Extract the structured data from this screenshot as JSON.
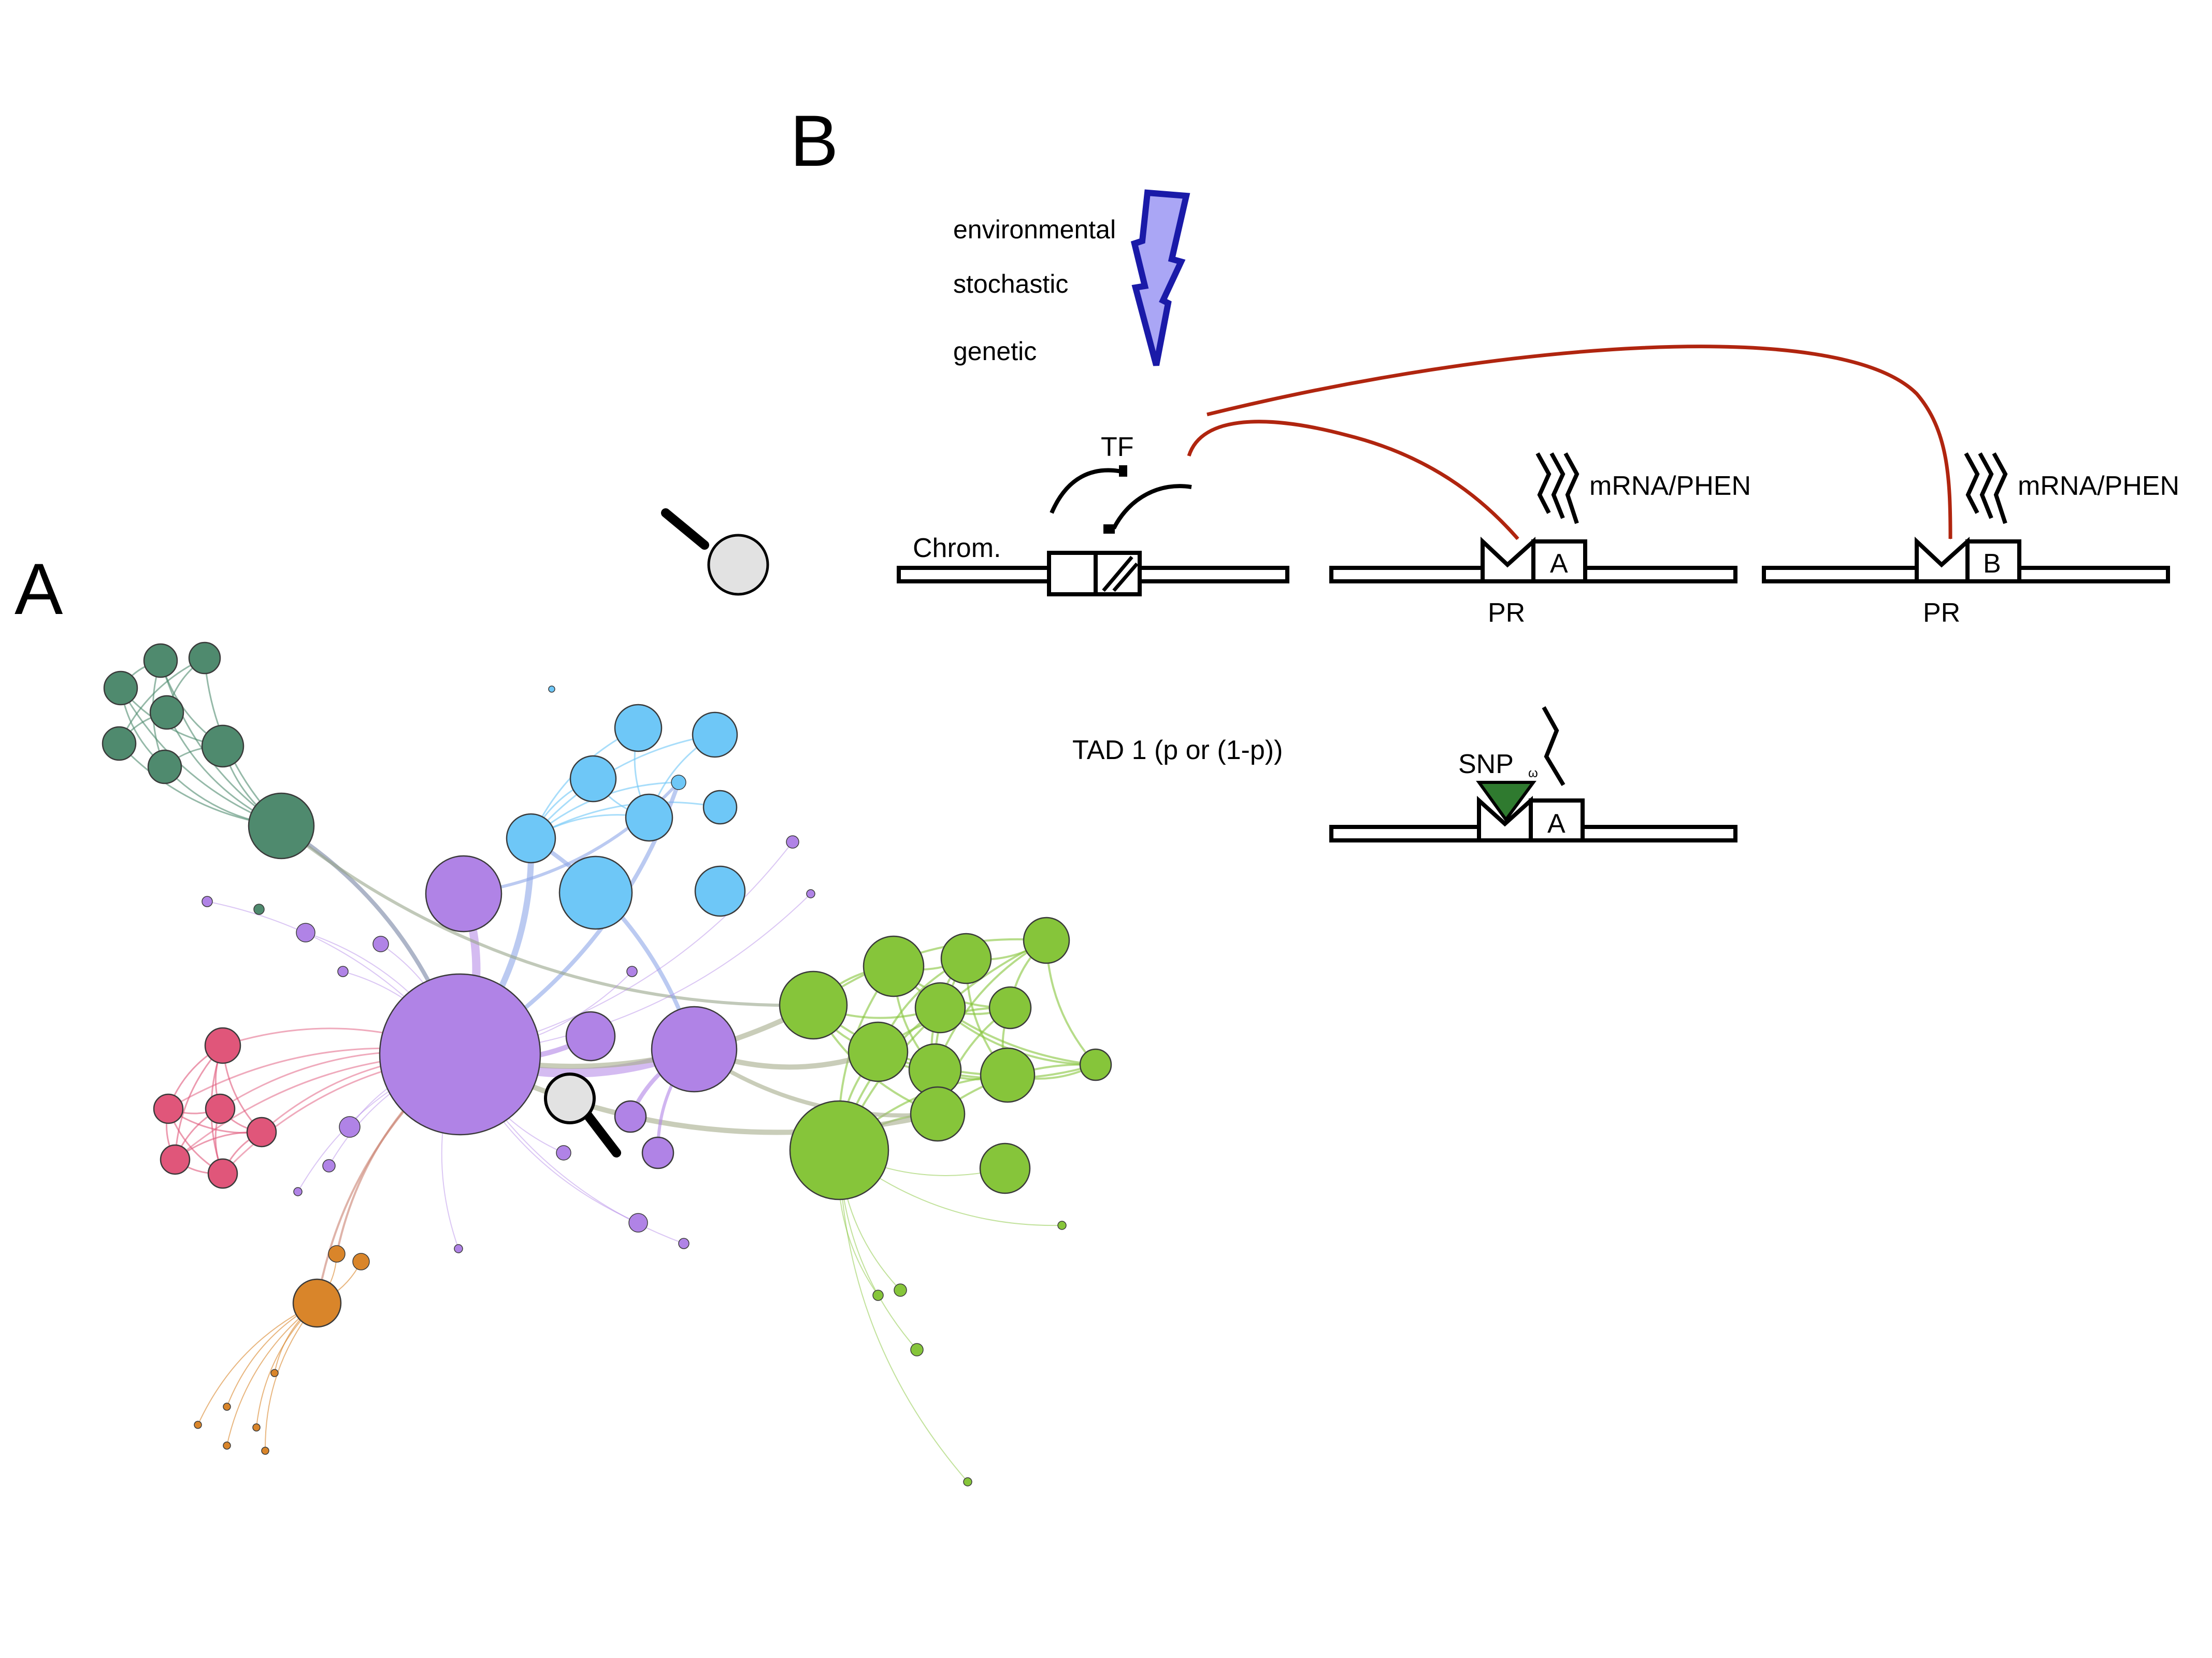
{
  "panel_a": {
    "label": "A",
    "clusters": [
      {
        "name": "dark-green",
        "color": "#4f8a6e",
        "nodes": 8
      },
      {
        "name": "blue",
        "color": "#6ec7f7",
        "nodes": 10
      },
      {
        "name": "purple",
        "color": "#b083e6",
        "nodes": 20
      },
      {
        "name": "light-green",
        "color": "#86c53a",
        "nodes": 18
      },
      {
        "name": "red",
        "color": "#e0567a",
        "nodes": 6
      },
      {
        "name": "orange",
        "color": "#d9852a",
        "nodes": 9
      }
    ],
    "magnifier_icon": "magnifying-glass-icon"
  },
  "panel_b": {
    "label": "B",
    "factors": [
      "environmental",
      "stochastic",
      "genetic"
    ],
    "bolt_color": "#aaa6f5",
    "bolt_stroke": "#1a1aa8",
    "tf_label": "TF",
    "chrom_label": "Chrom.",
    "gene_a_label": "A",
    "gene_b_label": "B",
    "pr_label_1": "PR",
    "pr_label_2": "PR",
    "mrna_label_1": "mRNA/PHEN",
    "mrna_label_2": "mRNA/PHEN",
    "tad_label": "TAD 1 (p or (1-p))",
    "snp_label": "SNP",
    "snp_sub": "ω",
    "snp_gene_label": "A",
    "arrow_color": "#b0250f",
    "snp_color": "#2f7a2f"
  }
}
